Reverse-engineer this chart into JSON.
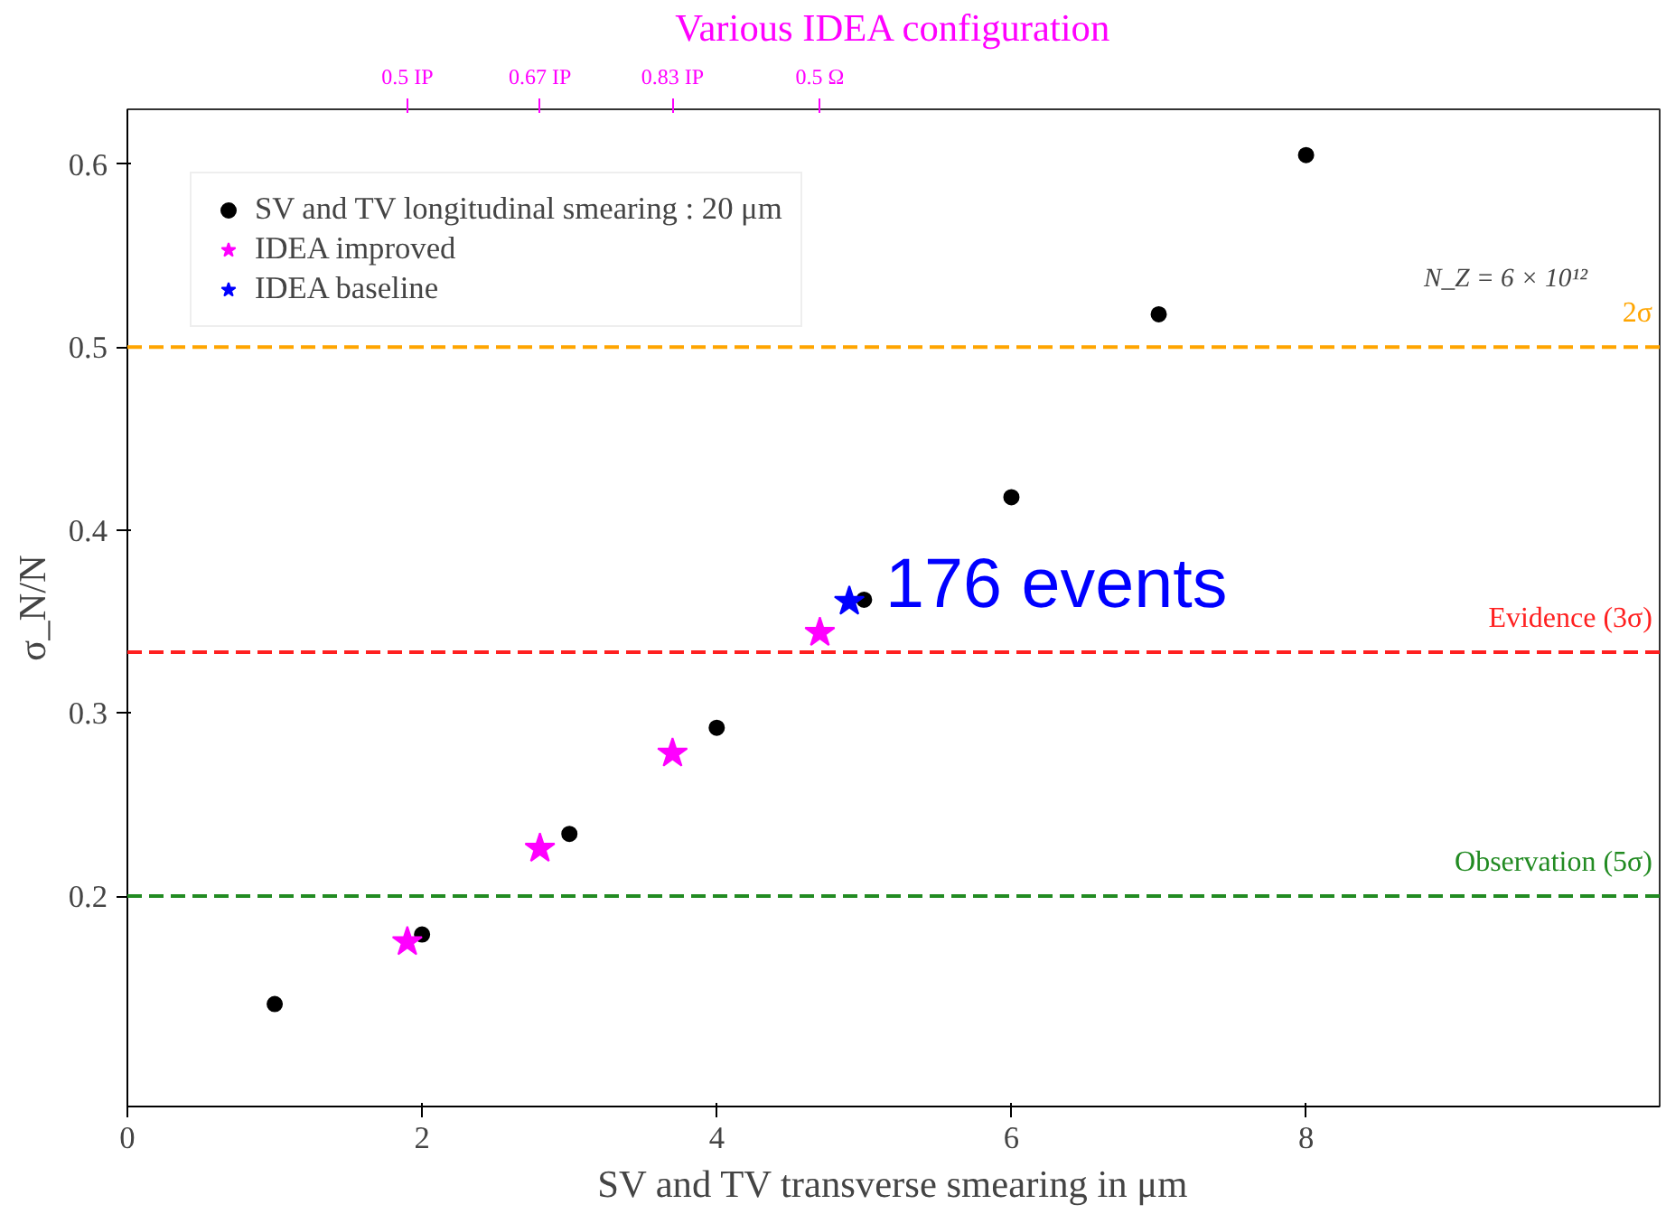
{
  "chart_data": {
    "type": "scatter",
    "xlabel": "SV and TV transverse smearing in μm",
    "ylabel": "σ_N/N",
    "x2label": "Various IDEA configuration",
    "xlim": [
      0,
      10.4
    ],
    "ylim": [
      0.085,
      0.63
    ],
    "xticks": [
      0,
      2,
      4,
      6,
      8
    ],
    "yticks": [
      0.2,
      0.3,
      0.4,
      0.5,
      0.6
    ],
    "series": [
      {
        "name": "SV and TV longitudinal smearing : 20 μm",
        "color": "#000000",
        "marker": "circle",
        "x": [
          1,
          2,
          3,
          4,
          5,
          6,
          7,
          8
        ],
        "values": [
          0.141,
          0.179,
          0.234,
          0.292,
          0.362,
          0.418,
          0.518,
          0.605
        ]
      },
      {
        "name": "IDEA improved",
        "color": "#ff00ff",
        "marker": "star",
        "x": [
          1.9,
          2.8,
          3.7,
          4.7
        ],
        "values": [
          0.175,
          0.226,
          0.278,
          0.344
        ]
      },
      {
        "name": "IDEA baseline",
        "color": "#0000ff",
        "marker": "star",
        "x": [
          4.9
        ],
        "values": [
          0.361
        ]
      }
    ],
    "ref_lines": [
      {
        "axis": "y",
        "value": 0.5,
        "label": "2σ",
        "color": "#ffa500",
        "line_style": "dashed"
      },
      {
        "axis": "y",
        "value": 0.3333,
        "label": "Evidence (3σ)",
        "color": "#ff2020",
        "line_style": "dashed"
      },
      {
        "axis": "y",
        "value": 0.2,
        "label": "Observation (5σ)",
        "color": "#228b22",
        "line_style": "dashed"
      }
    ],
    "annotations": [
      {
        "text": "0.5 IP",
        "x": 1.9
      },
      {
        "text": "0.67 IP",
        "x": 2.8
      },
      {
        "text": "0.83 IP",
        "x": 3.7
      },
      {
        "text": "0.5 Ω",
        "x": 4.7
      },
      {
        "text": "176 events",
        "x": 4.9,
        "y": 0.361
      },
      "N_Z = 6 × 10¹²"
    ],
    "legend": "top left",
    "grid": false
  }
}
